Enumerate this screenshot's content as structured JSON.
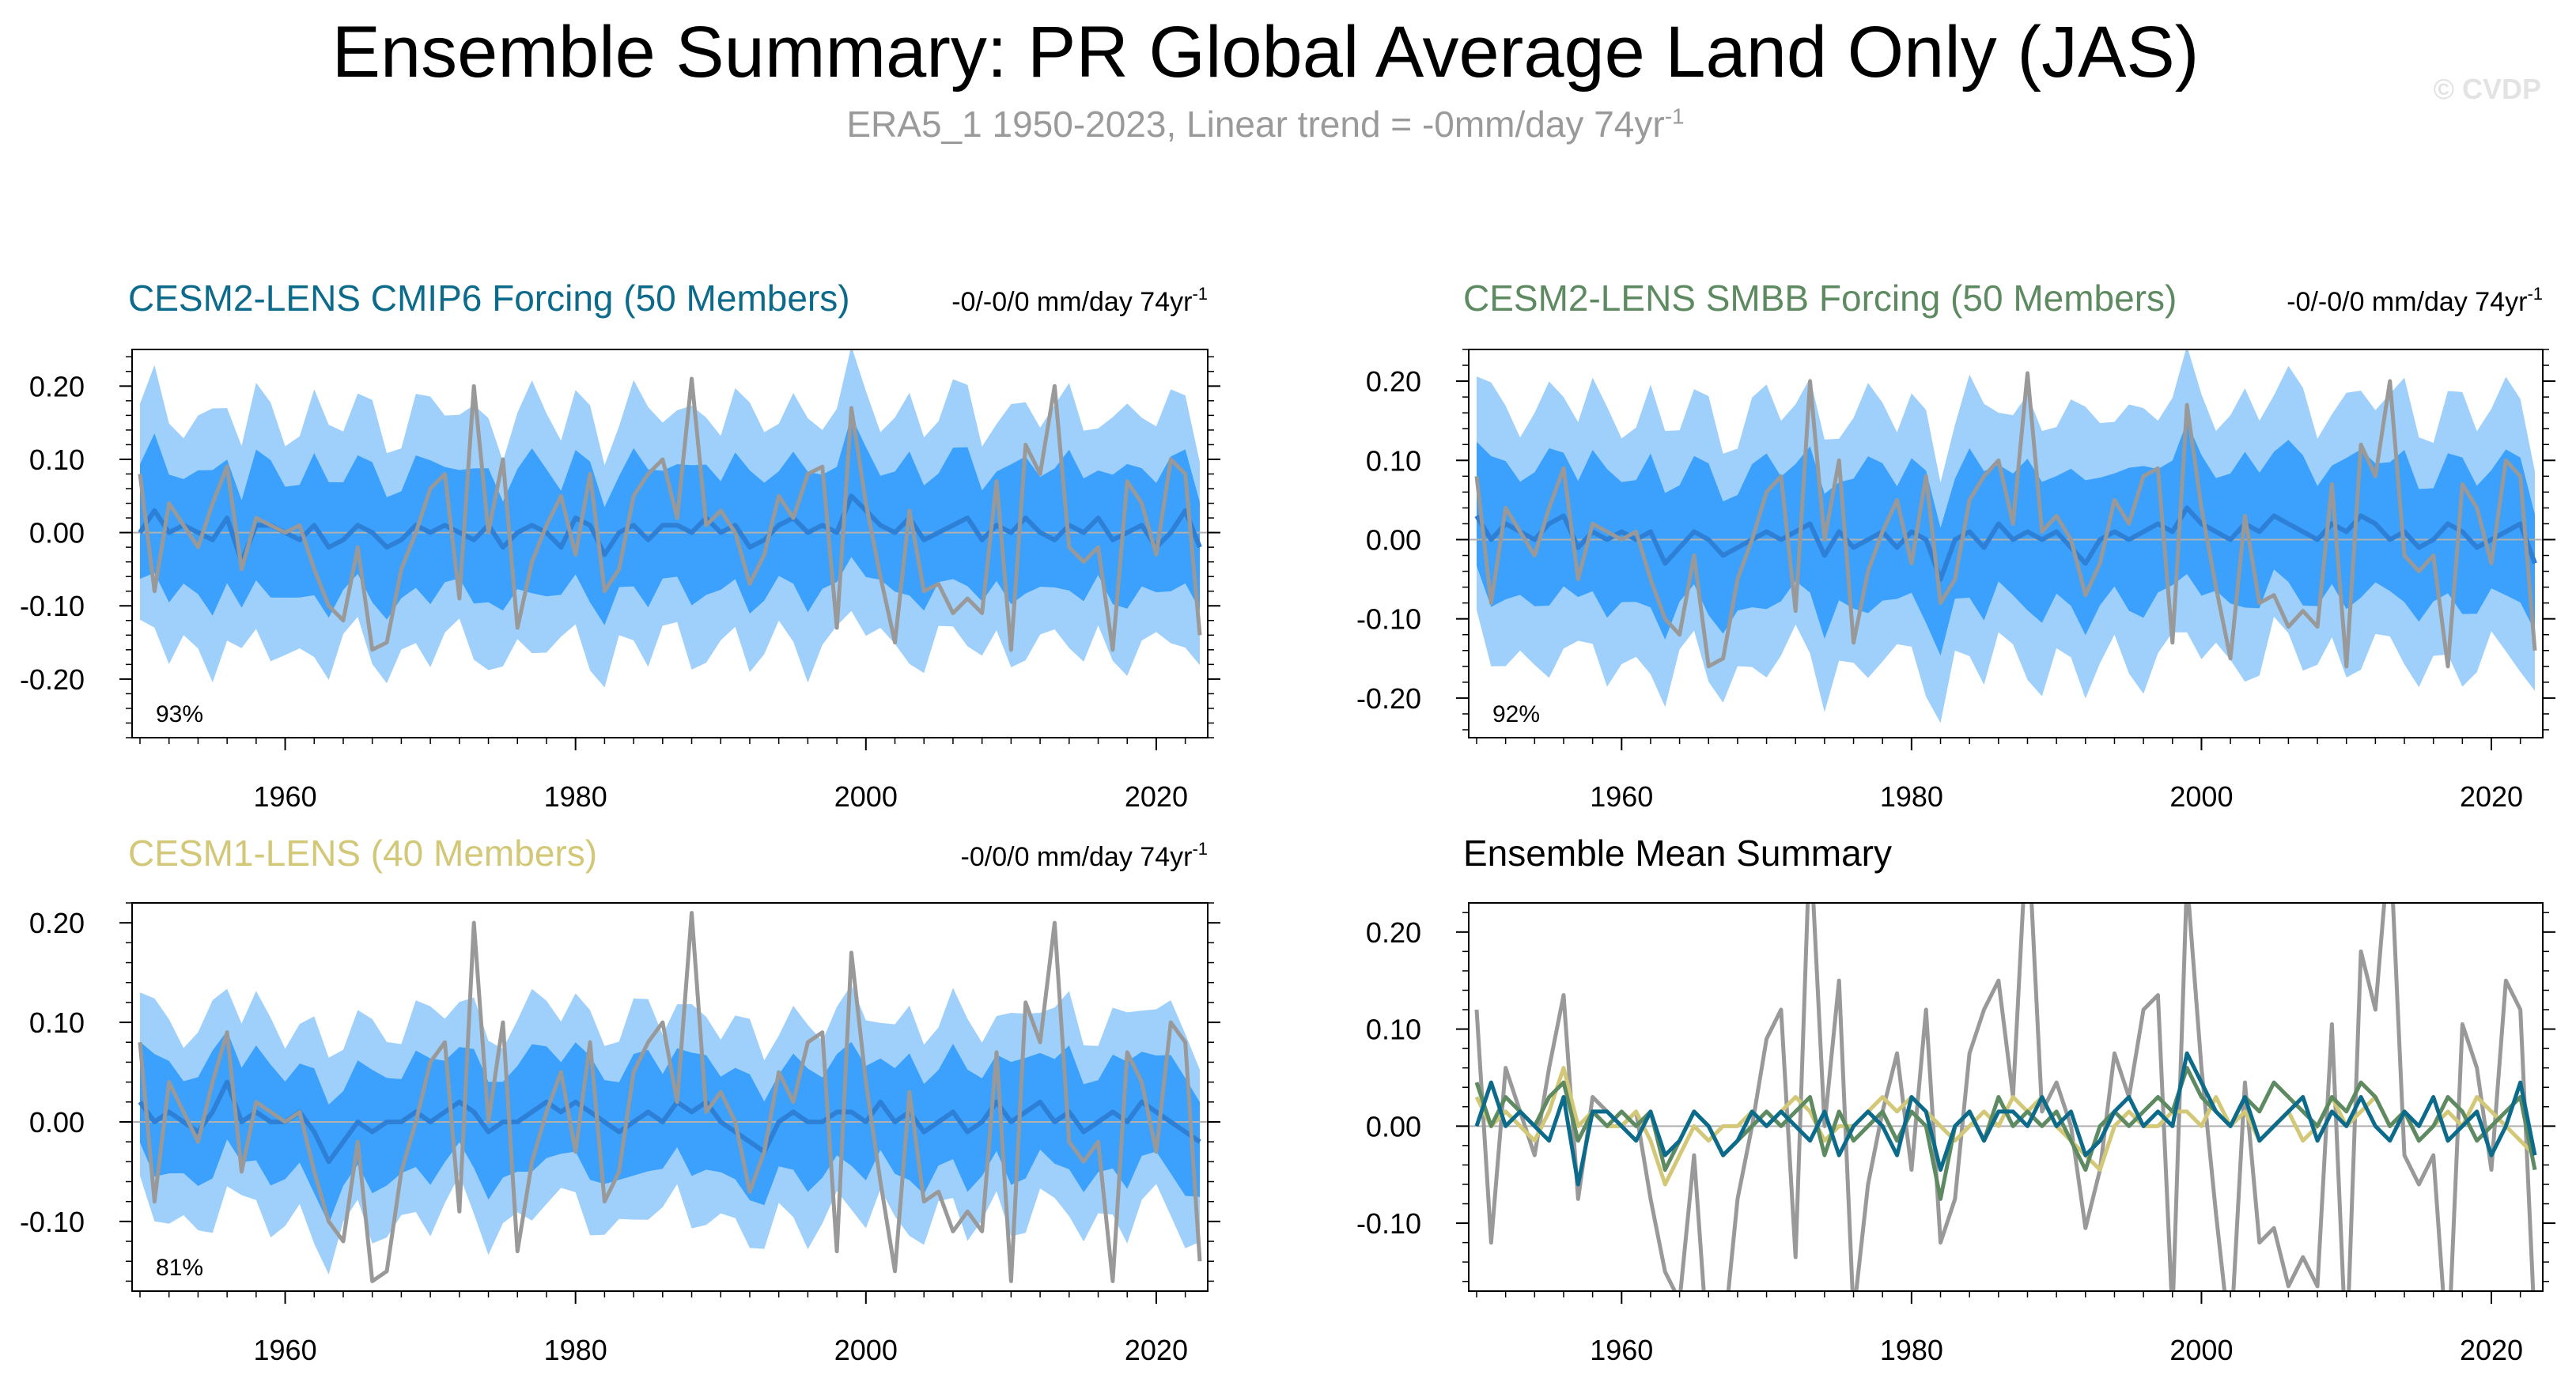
{
  "header": {
    "title": "Ensemble Summary: PR Global Average Land Only (JAS)",
    "subtitle_main": "ERA5_1 1950-2023, Linear trend = -0mm/day 74yr",
    "subtitle_sup": "-1",
    "watermark": "© CVDP"
  },
  "colors": {
    "obs": "#999999",
    "band_outer": "#9fd0fc",
    "band_inner": "#3ba1fc",
    "ens_mean": "#2d80d6",
    "cmip6": "#0c6a8a",
    "smbb": "#5e8a62",
    "lens1": "#d2c878",
    "zero_line": "#b0b0b0"
  },
  "chart_data": [
    {
      "id": "cmip6",
      "type": "area",
      "title": "CESM2-LENS CMIP6 Forcing (50 Members)",
      "title_color": "#0c6a8a",
      "trend_text": "-0/-0/0 mm/day 74yr",
      "trend_sup": "-1",
      "percent_label": "93%",
      "x": [
        1950,
        2023
      ],
      "xticks": [
        1960,
        1980,
        2000,
        2020
      ],
      "ylim": [
        -0.28,
        0.25
      ],
      "yticks": [
        -0.2,
        -0.1,
        0.0,
        0.1,
        0.2
      ],
      "ytick_labels": [
        "-0.20",
        "-0.10",
        "0.00",
        "0.10",
        "0.20"
      ],
      "outer_width": 0.16,
      "inner_width": 0.085,
      "obs_source": "ERA5_1",
      "mean_series": "cmip6",
      "amp": 1.0
    },
    {
      "id": "smbb",
      "type": "area",
      "title": "CESM2-LENS SMBB Forcing (50 Members)",
      "title_color": "#5e8a62",
      "trend_text": "-0/-0/0 mm/day 74yr",
      "trend_sup": "-1",
      "percent_label": "92%",
      "x": [
        1950,
        2023
      ],
      "xticks": [
        1960,
        1980,
        2000,
        2020
      ],
      "ylim": [
        -0.25,
        0.24
      ],
      "yticks": [
        -0.2,
        -0.1,
        0.0,
        0.1,
        0.2
      ],
      "ytick_labels": [
        "-0.20",
        "-0.10",
        "0.00",
        "0.10",
        "0.20"
      ],
      "outer_width": 0.16,
      "inner_width": 0.085,
      "obs_source": "ERA5_1",
      "mean_series": "smbb",
      "amp": 1.0
    },
    {
      "id": "lens1",
      "type": "area",
      "title": "CESM1-LENS (40 Members)",
      "title_color": "#d2c878",
      "trend_text": "-0/0/0 mm/day 74yr",
      "trend_sup": "-1",
      "percent_label": "81%",
      "x": [
        1950,
        2023
      ],
      "xticks": [
        1960,
        1980,
        2000,
        2020
      ],
      "ylim": [
        -0.17,
        0.22
      ],
      "yticks": [
        -0.1,
        0.0,
        0.1,
        0.2
      ],
      "ytick_labels": [
        "-0.10",
        "0.00",
        "0.10",
        "0.20"
      ],
      "outer_width": 0.1,
      "inner_width": 0.055,
      "obs_source": "ERA5_1",
      "mean_series": "lens1",
      "amp": 1.0
    },
    {
      "id": "summary",
      "type": "line",
      "title": "Ensemble Mean Summary",
      "title_color": "#000000",
      "x": [
        1950,
        2023
      ],
      "xticks": [
        1960,
        1980,
        2000,
        2020
      ],
      "ylim": [
        -0.17,
        0.23
      ],
      "yticks": [
        -0.1,
        0.0,
        0.1,
        0.2
      ],
      "ytick_labels": [
        "-0.10",
        "0.00",
        "0.10",
        "0.20"
      ],
      "series_ids": [
        "ERA5_1",
        "cmip6",
        "smbb",
        "lens1"
      ],
      "amp": 1.5
    }
  ],
  "series": {
    "ERA5_1": [
      0.08,
      -0.08,
      0.04,
      0.01,
      -0.02,
      0.04,
      0.09,
      -0.05,
      0.02,
      0.01,
      0.0,
      0.01,
      -0.05,
      -0.1,
      -0.12,
      -0.02,
      -0.16,
      -0.15,
      -0.05,
      0.0,
      0.06,
      0.08,
      -0.09,
      0.2,
      0.0,
      0.1,
      -0.13,
      -0.04,
      0.01,
      0.05,
      -0.03,
      0.08,
      -0.08,
      -0.05,
      0.05,
      0.08,
      0.1,
      0.02,
      0.21,
      0.01,
      0.03,
      0.0,
      -0.07,
      -0.03,
      0.05,
      0.02,
      0.08,
      0.09,
      -0.13,
      0.17,
      0.04,
      -0.06,
      -0.15,
      0.03,
      -0.08,
      -0.07,
      -0.11,
      -0.09,
      -0.11,
      0.07,
      -0.16,
      0.12,
      0.08,
      0.2,
      -0.02,
      -0.04,
      -0.02,
      -0.16,
      0.07,
      0.04,
      -0.03,
      0.1,
      0.08,
      -0.14
    ],
    "cmip6": [
      0.0,
      0.03,
      0.0,
      0.01,
      0.0,
      -0.01,
      0.02,
      -0.04,
      0.01,
      0.01,
      0.0,
      -0.01,
      0.01,
      -0.02,
      -0.01,
      0.01,
      0.0,
      -0.02,
      -0.01,
      0.01,
      0.0,
      0.01,
      0.0,
      -0.01,
      0.01,
      -0.02,
      0.0,
      0.01,
      0.0,
      -0.02,
      0.02,
      0.01,
      -0.03,
      0.0,
      0.01,
      -0.01,
      0.01,
      0.01,
      0.0,
      0.02,
      0.0,
      0.01,
      -0.02,
      -0.01,
      0.01,
      0.02,
      0.0,
      0.01,
      0.0,
      0.05,
      0.03,
      0.01,
      0.0,
      0.02,
      -0.01,
      0.0,
      0.01,
      0.02,
      -0.01,
      0.01,
      0.0,
      0.02,
      0.0,
      -0.01,
      0.01,
      0.0,
      0.02,
      -0.01,
      0.0,
      0.01,
      -0.02,
      0.0,
      0.03,
      -0.02
    ],
    "smbb": [
      0.03,
      0.0,
      0.02,
      0.01,
      0.0,
      0.02,
      0.03,
      -0.01,
      0.01,
      0.0,
      0.01,
      0.0,
      0.01,
      -0.03,
      -0.01,
      0.01,
      0.0,
      -0.02,
      -0.01,
      0.0,
      0.01,
      0.0,
      0.01,
      0.02,
      -0.02,
      0.01,
      -0.01,
      0.0,
      0.01,
      -0.01,
      0.01,
      0.0,
      -0.05,
      0.0,
      0.01,
      -0.01,
      0.02,
      0.0,
      0.01,
      0.0,
      0.01,
      -0.01,
      -0.03,
      0.0,
      0.01,
      0.0,
      0.01,
      0.02,
      0.01,
      0.04,
      0.02,
      0.01,
      0.0,
      0.02,
      0.01,
      0.03,
      0.02,
      0.01,
      0.0,
      0.02,
      0.01,
      0.03,
      0.02,
      0.0,
      0.01,
      -0.01,
      0.0,
      0.02,
      0.01,
      -0.01,
      0.0,
      0.01,
      0.02,
      -0.03
    ],
    "lens1": [
      0.02,
      0.0,
      0.01,
      0.0,
      -0.01,
      0.01,
      0.04,
      0.0,
      0.01,
      0.0,
      0.0,
      0.01,
      -0.01,
      -0.04,
      -0.02,
      0.0,
      -0.01,
      0.0,
      0.0,
      0.01,
      0.0,
      0.01,
      0.02,
      0.01,
      -0.01,
      0.0,
      0.0,
      0.01,
      0.02,
      0.01,
      0.02,
      0.01,
      0.0,
      -0.01,
      0.0,
      0.01,
      0.0,
      0.02,
      0.01,
      0.02,
      0.0,
      -0.01,
      -0.02,
      -0.03,
      0.0,
      0.01,
      0.0,
      0.0,
      0.01,
      0.01,
      0.0,
      0.02,
      0.0,
      0.01,
      -0.01,
      0.0,
      0.01,
      -0.01,
      0.0,
      0.02,
      0.0,
      0.01,
      0.02,
      0.0,
      0.01,
      -0.01,
      0.0,
      0.01,
      0.0,
      0.02,
      0.01,
      0.0,
      -0.01,
      -0.02
    ]
  }
}
